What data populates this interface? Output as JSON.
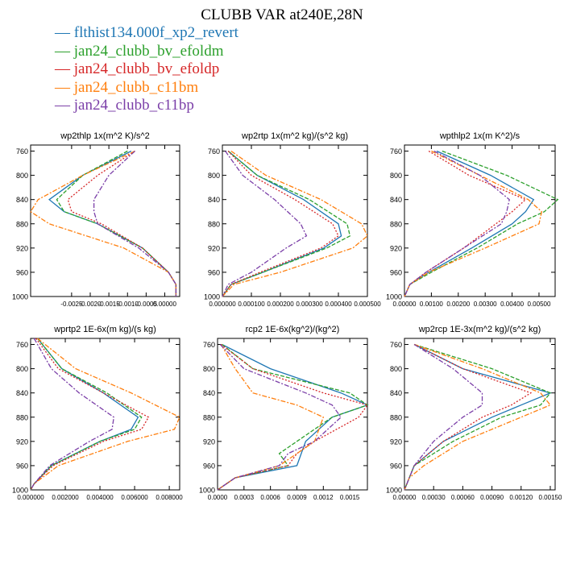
{
  "title": "CLUBB VAR at240E,28N",
  "legend": [
    {
      "label": "— flthist134.000f_xp2_revert",
      "color": "#1f77b4"
    },
    {
      "label": "— jan24_clubb_bv_efoldm",
      "color": "#2ca02c"
    },
    {
      "label": "— jan24_clubb_bv_efoldp",
      "color": "#d62728"
    },
    {
      "label": "— jan24_clubb_c11bm",
      "color": "#ff7f0e"
    },
    {
      "label": "— jan24_clubb_c11bp",
      "color": "#7b3fa8"
    }
  ],
  "chart_data": [
    {
      "type": "line",
      "title": "wp2thlp  1x(m^2 K)/s^2",
      "xlim": [
        -0.0036,
        0.0004
      ],
      "ylim": [
        1000,
        750
      ],
      "yticks": [
        760,
        800,
        840,
        880,
        920,
        960,
        1000
      ],
      "xticks": [
        -0.0025,
        -0.002,
        -0.0015,
        -0.001,
        -0.0005,
        0.0
      ],
      "xticklabels": [
        "-0.0025",
        "-0.0020",
        "-0.0015",
        "-0.0010",
        "-0.0005",
        "0.00000"
      ],
      "y": [
        760,
        800,
        840,
        860,
        880,
        920,
        960,
        980,
        1000
      ],
      "series": [
        {
          "values": [
            -0.0009,
            -0.0022,
            -0.0031,
            -0.0027,
            -0.0018,
            -0.0006,
            0.0001,
            0.0003,
            0.0003
          ]
        },
        {
          "values": [
            -0.001,
            -0.0022,
            -0.0029,
            -0.0027,
            -0.0018,
            -0.0006,
            0.0001,
            0.0003,
            0.0003
          ]
        },
        {
          "values": [
            -0.0008,
            -0.0018,
            -0.0026,
            -0.0025,
            -0.0017,
            -0.0006,
            0.0001,
            0.0003,
            0.0003
          ]
        },
        {
          "values": [
            -0.0008,
            -0.0022,
            -0.0034,
            -0.0036,
            -0.0031,
            -0.0011,
            0.0001,
            0.0003,
            0.0003
          ]
        },
        {
          "values": [
            -0.0008,
            -0.0015,
            -0.0019,
            -0.0019,
            -0.0018,
            -0.0007,
            0.0001,
            0.0003,
            0.0003
          ]
        }
      ]
    },
    {
      "type": "line",
      "title": "wp2rtp  1x(m^2 kg)/(s^2 kg)",
      "xlim": [
        0.0,
        0.0005
      ],
      "ylim": [
        1000,
        750
      ],
      "yticks": [
        760,
        800,
        840,
        880,
        920,
        960,
        1000
      ],
      "xticks": [
        0.0,
        0.0001,
        0.0002,
        0.0003,
        0.0004,
        0.0005
      ],
      "xticklabels": [
        "0.000000",
        "0.000100",
        "0.000200",
        "0.000300",
        "0.000400",
        "0.000500"
      ],
      "y": [
        760,
        800,
        840,
        880,
        900,
        920,
        960,
        980,
        1000
      ],
      "series": [
        {
          "values": [
            2e-05,
            0.00012,
            0.00028,
            0.0004,
            0.00041,
            0.00035,
            0.00014,
            3e-05,
            0.0
          ],
          "color": "#1f77b4"
        },
        {
          "values": [
            2e-05,
            0.00012,
            0.0003,
            0.00043,
            0.00044,
            0.00036,
            0.00014,
            3e-05,
            0.0
          ]
        },
        {
          "values": [
            2e-05,
            0.0001,
            0.00025,
            0.00038,
            0.0004,
            0.00034,
            0.00013,
            3e-05,
            0.0
          ]
        },
        {
          "values": [
            3e-05,
            0.00015,
            0.00034,
            0.00048,
            0.0005,
            0.00045,
            0.0002,
            4e-05,
            0.0
          ]
        },
        {
          "values": [
            1e-05,
            7e-05,
            0.00018,
            0.00027,
            0.00029,
            0.00022,
            0.0001,
            2e-05,
            0.0
          ]
        }
      ]
    },
    {
      "type": "line",
      "title": "wpthlp2  1x(m K^2)/s",
      "xlim": [
        0.0,
        0.0056
      ],
      "ylim": [
        1000,
        750
      ],
      "yticks": [
        760,
        800,
        840,
        880,
        920,
        960,
        1000
      ],
      "xticks": [
        0.0,
        0.001,
        0.002,
        0.003,
        0.004,
        0.005
      ],
      "xticklabels": [
        "0.00000",
        "0.00100",
        "0.00200",
        "0.00300",
        "0.00400",
        "0.00500"
      ],
      "y": [
        760,
        800,
        840,
        860,
        880,
        920,
        960,
        980,
        1000
      ],
      "series": [
        {
          "values": [
            0.0012,
            0.0032,
            0.0048,
            0.0045,
            0.004,
            0.0025,
            0.0009,
            0.0002,
            0.0
          ]
        },
        {
          "values": [
            0.0014,
            0.0038,
            0.0057,
            0.0052,
            0.0042,
            0.0027,
            0.001,
            0.0002,
            0.0
          ]
        },
        {
          "values": [
            0.0009,
            0.0024,
            0.0045,
            0.004,
            0.0034,
            0.0022,
            0.0008,
            0.0002,
            0.0
          ]
        },
        {
          "values": [
            0.001,
            0.0028,
            0.0046,
            0.0051,
            0.005,
            0.003,
            0.0009,
            0.0002,
            0.0
          ]
        },
        {
          "values": [
            0.0011,
            0.0028,
            0.0039,
            0.0038,
            0.0036,
            0.0022,
            0.0008,
            0.0002,
            0.0
          ]
        }
      ]
    },
    {
      "type": "line",
      "title": "wprtp2  1E-6x(m kg)/(s kg)",
      "xlim": [
        0.0,
        0.0086
      ],
      "ylim": [
        1000,
        750
      ],
      "yticks": [
        760,
        800,
        840,
        880,
        920,
        960,
        1000
      ],
      "xticks": [
        0.0,
        0.002,
        0.004,
        0.006,
        0.008
      ],
      "xticklabels": [
        "0.000000",
        "0.002000",
        "0.004000",
        "0.006000",
        "0.008000"
      ],
      "y": [
        750,
        800,
        840,
        880,
        900,
        920,
        960,
        990,
        1000
      ],
      "series": [
        {
          "values": [
            0.0004,
            0.0018,
            0.0042,
            0.0062,
            0.0058,
            0.004,
            0.0012,
            0.0002,
            0.0
          ]
        },
        {
          "values": [
            0.0004,
            0.0018,
            0.0044,
            0.0064,
            0.006,
            0.004,
            0.0012,
            0.0002,
            0.0
          ]
        },
        {
          "values": [
            0.0003,
            0.0016,
            0.0042,
            0.0068,
            0.0064,
            0.0042,
            0.0013,
            0.0002,
            0.0
          ]
        },
        {
          "values": [
            0.0004,
            0.0026,
            0.0058,
            0.0086,
            0.0083,
            0.0056,
            0.0016,
            0.0002,
            0.0
          ]
        },
        {
          "values": [
            0.0002,
            0.0012,
            0.0028,
            0.0048,
            0.0047,
            0.0034,
            0.0011,
            0.0002,
            0.0
          ]
        }
      ]
    },
    {
      "type": "line",
      "title": "rcp2  1E-6x(kg^2)/(kg^2)",
      "xlim": [
        0.0,
        0.0017
      ],
      "ylim": [
        1000,
        750
      ],
      "yticks": [
        760,
        800,
        840,
        880,
        920,
        960,
        1000
      ],
      "xticks": [
        0.0,
        0.0003,
        0.0006,
        0.0009,
        0.0012,
        0.0015
      ],
      "xticklabels": [
        "0.0000",
        "0.0003",
        "0.0006",
        "0.0009",
        "0.0012",
        "0.0015"
      ],
      "y": [
        760,
        800,
        840,
        860,
        880,
        920,
        940,
        960,
        980,
        1000
      ],
      "series": [
        {
          "values": [
            5e-05,
            0.0006,
            0.0014,
            0.0017,
            0.0013,
            0.001,
            0.00095,
            0.0009,
            0.0002,
            0.0
          ]
        },
        {
          "values": [
            5e-05,
            0.0004,
            0.0015,
            0.0017,
            0.0013,
            0.0009,
            0.0007,
            0.0008,
            0.0002,
            0.0
          ]
        },
        {
          "values": [
            4e-05,
            0.0004,
            0.0012,
            0.0017,
            0.0016,
            0.0011,
            0.0009,
            0.0008,
            0.0002,
            0.0
          ]
        },
        {
          "values": [
            4e-05,
            0.0002,
            0.0004,
            0.0009,
            0.0012,
            0.0011,
            0.0009,
            0.0007,
            0.0002,
            0.0
          ]
        },
        {
          "values": [
            3e-05,
            0.0003,
            0.001,
            0.0013,
            0.0014,
            0.0011,
            0.0008,
            0.0007,
            0.0002,
            0.0
          ]
        }
      ]
    },
    {
      "type": "line",
      "title": "wp2rcp  1E-3x(m^2 kg)/(s^2 kg)",
      "xlim": [
        0.0,
        0.00155
      ],
      "ylim": [
        1000,
        750
      ],
      "yticks": [
        760,
        800,
        840,
        880,
        920,
        960,
        1000
      ],
      "xticks": [
        0.0,
        0.0003,
        0.0006,
        0.0009,
        0.0012,
        0.0015
      ],
      "xticklabels": [
        "0.00000",
        "0.00030",
        "0.00060",
        "0.00090",
        "0.00120",
        "0.00150"
      ],
      "y": [
        760,
        800,
        840,
        860,
        880,
        920,
        960,
        980,
        1000
      ],
      "series": [
        {
          "values": [
            0.0001,
            0.0006,
            0.0015,
            0.0012,
            0.0009,
            0.0004,
            0.0001,
            5e-05,
            0.0
          ]
        },
        {
          "values": [
            0.0001,
            0.0009,
            0.0015,
            0.0014,
            0.001,
            0.0005,
            0.0001,
            5e-05,
            0.0
          ]
        },
        {
          "values": [
            0.0001,
            0.0006,
            0.0013,
            0.0011,
            0.0008,
            0.0004,
            0.0001,
            5e-05,
            0.0
          ]
        },
        {
          "values": [
            0.0001,
            0.0008,
            0.0014,
            0.0015,
            0.0012,
            0.0006,
            0.0002,
            5e-05,
            0.0
          ]
        },
        {
          "values": [
            0.0001,
            0.0005,
            0.0008,
            0.0008,
            0.0006,
            0.0003,
            0.0001,
            5e-05,
            0.0
          ]
        }
      ]
    }
  ]
}
